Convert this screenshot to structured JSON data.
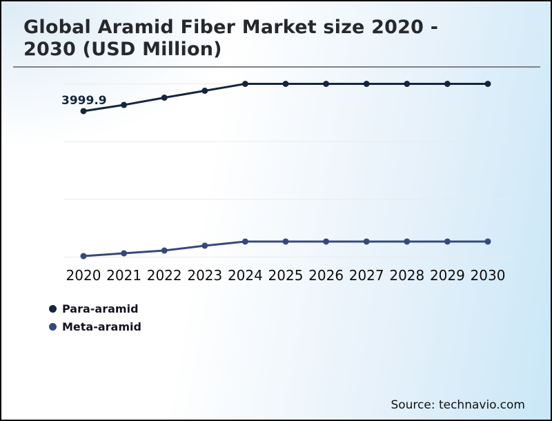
{
  "header": {
    "title_line1": "Global Aramid Fiber Market size 2020 -",
    "title_line2": "2030 (USD Million)"
  },
  "source": "Source: technavio.com",
  "colors": {
    "para_aramid": "#15253e",
    "meta_aramid": "#35497b",
    "gridline": "#edeae5",
    "title_text": "#26282b",
    "title_rule": "#7d8286",
    "axis_label": "#0d0d0d",
    "data_label": "#15253e",
    "border": "#000000"
  },
  "chart_data": {
    "type": "line",
    "title": "Global Aramid Fiber Market size 2020 - 2030 (USD Million)",
    "xlabel": "",
    "ylabel": "",
    "categories": [
      "2020",
      "2021",
      "2022",
      "2023",
      "2024",
      "2025",
      "2026",
      "2027",
      "2028",
      "2029",
      "2030"
    ],
    "series": [
      {
        "name": "Para-aramid",
        "color": "#15253e",
        "values": [
          3999.9,
          4067,
          4146,
          4221,
          4296,
          4296,
          4296,
          4296,
          4296,
          4296,
          4296
        ],
        "data_label": {
          "index": 0,
          "text": "3999.9"
        }
      },
      {
        "name": "Meta-aramid",
        "color": "#35497b",
        "values": [
          2425,
          2455,
          2485,
          2538,
          2583,
          2583,
          2583,
          2583,
          2583,
          2583,
          2583
        ]
      }
    ],
    "ylim": [
      2414,
      4296
    ],
    "gridline_count": 4,
    "grid": "horizontal-only",
    "y_axis_labels_visible": false,
    "legend_position": "bottom-left"
  }
}
